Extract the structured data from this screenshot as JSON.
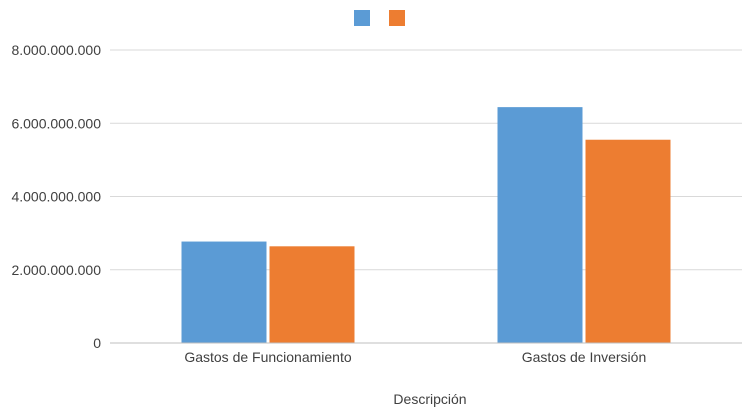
{
  "chart_data": {
    "type": "bar",
    "categories": [
      "Gastos de Funcionamiento",
      "Gastos de Inversión"
    ],
    "series": [
      {
        "color": "#5b9bd5",
        "values": [
          2770000000,
          6440000000
        ]
      },
      {
        "color": "#ed7d31",
        "values": [
          2640000000,
          5550000000
        ]
      }
    ],
    "xlabel": "Descripción",
    "ylabel": "",
    "ylim": [
      0,
      8000000000
    ],
    "yticks": [
      0,
      2000000000,
      4000000000,
      6000000000,
      8000000000
    ],
    "ytick_labels": [
      "0",
      "2.000.000.000",
      "4.000.000.000",
      "6.000.000.000",
      "8.000.000.000"
    ],
    "grid": true,
    "legend_position": "top"
  }
}
